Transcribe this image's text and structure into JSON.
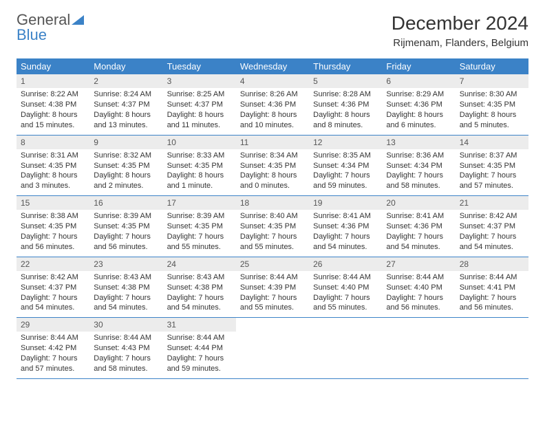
{
  "brand": {
    "part1": "General",
    "part2": "Blue"
  },
  "title": "December 2024",
  "location": "Rijmenam, Flanders, Belgium",
  "colors": {
    "accent": "#3b82c7",
    "daynum_bg": "#ececec",
    "text": "#333333",
    "background": "#ffffff"
  },
  "dayHeaders": [
    "Sunday",
    "Monday",
    "Tuesday",
    "Wednesday",
    "Thursday",
    "Friday",
    "Saturday"
  ],
  "weeks": [
    [
      {
        "n": "1",
        "sr": "Sunrise: 8:22 AM",
        "ss": "Sunset: 4:38 PM",
        "dl1": "Daylight: 8 hours",
        "dl2": "and 15 minutes."
      },
      {
        "n": "2",
        "sr": "Sunrise: 8:24 AM",
        "ss": "Sunset: 4:37 PM",
        "dl1": "Daylight: 8 hours",
        "dl2": "and 13 minutes."
      },
      {
        "n": "3",
        "sr": "Sunrise: 8:25 AM",
        "ss": "Sunset: 4:37 PM",
        "dl1": "Daylight: 8 hours",
        "dl2": "and 11 minutes."
      },
      {
        "n": "4",
        "sr": "Sunrise: 8:26 AM",
        "ss": "Sunset: 4:36 PM",
        "dl1": "Daylight: 8 hours",
        "dl2": "and 10 minutes."
      },
      {
        "n": "5",
        "sr": "Sunrise: 8:28 AM",
        "ss": "Sunset: 4:36 PM",
        "dl1": "Daylight: 8 hours",
        "dl2": "and 8 minutes."
      },
      {
        "n": "6",
        "sr": "Sunrise: 8:29 AM",
        "ss": "Sunset: 4:36 PM",
        "dl1": "Daylight: 8 hours",
        "dl2": "and 6 minutes."
      },
      {
        "n": "7",
        "sr": "Sunrise: 8:30 AM",
        "ss": "Sunset: 4:35 PM",
        "dl1": "Daylight: 8 hours",
        "dl2": "and 5 minutes."
      }
    ],
    [
      {
        "n": "8",
        "sr": "Sunrise: 8:31 AM",
        "ss": "Sunset: 4:35 PM",
        "dl1": "Daylight: 8 hours",
        "dl2": "and 3 minutes."
      },
      {
        "n": "9",
        "sr": "Sunrise: 8:32 AM",
        "ss": "Sunset: 4:35 PM",
        "dl1": "Daylight: 8 hours",
        "dl2": "and 2 minutes."
      },
      {
        "n": "10",
        "sr": "Sunrise: 8:33 AM",
        "ss": "Sunset: 4:35 PM",
        "dl1": "Daylight: 8 hours",
        "dl2": "and 1 minute."
      },
      {
        "n": "11",
        "sr": "Sunrise: 8:34 AM",
        "ss": "Sunset: 4:35 PM",
        "dl1": "Daylight: 8 hours",
        "dl2": "and 0 minutes."
      },
      {
        "n": "12",
        "sr": "Sunrise: 8:35 AM",
        "ss": "Sunset: 4:34 PM",
        "dl1": "Daylight: 7 hours",
        "dl2": "and 59 minutes."
      },
      {
        "n": "13",
        "sr": "Sunrise: 8:36 AM",
        "ss": "Sunset: 4:34 PM",
        "dl1": "Daylight: 7 hours",
        "dl2": "and 58 minutes."
      },
      {
        "n": "14",
        "sr": "Sunrise: 8:37 AM",
        "ss": "Sunset: 4:35 PM",
        "dl1": "Daylight: 7 hours",
        "dl2": "and 57 minutes."
      }
    ],
    [
      {
        "n": "15",
        "sr": "Sunrise: 8:38 AM",
        "ss": "Sunset: 4:35 PM",
        "dl1": "Daylight: 7 hours",
        "dl2": "and 56 minutes."
      },
      {
        "n": "16",
        "sr": "Sunrise: 8:39 AM",
        "ss": "Sunset: 4:35 PM",
        "dl1": "Daylight: 7 hours",
        "dl2": "and 56 minutes."
      },
      {
        "n": "17",
        "sr": "Sunrise: 8:39 AM",
        "ss": "Sunset: 4:35 PM",
        "dl1": "Daylight: 7 hours",
        "dl2": "and 55 minutes."
      },
      {
        "n": "18",
        "sr": "Sunrise: 8:40 AM",
        "ss": "Sunset: 4:35 PM",
        "dl1": "Daylight: 7 hours",
        "dl2": "and 55 minutes."
      },
      {
        "n": "19",
        "sr": "Sunrise: 8:41 AM",
        "ss": "Sunset: 4:36 PM",
        "dl1": "Daylight: 7 hours",
        "dl2": "and 54 minutes."
      },
      {
        "n": "20",
        "sr": "Sunrise: 8:41 AM",
        "ss": "Sunset: 4:36 PM",
        "dl1": "Daylight: 7 hours",
        "dl2": "and 54 minutes."
      },
      {
        "n": "21",
        "sr": "Sunrise: 8:42 AM",
        "ss": "Sunset: 4:37 PM",
        "dl1": "Daylight: 7 hours",
        "dl2": "and 54 minutes."
      }
    ],
    [
      {
        "n": "22",
        "sr": "Sunrise: 8:42 AM",
        "ss": "Sunset: 4:37 PM",
        "dl1": "Daylight: 7 hours",
        "dl2": "and 54 minutes."
      },
      {
        "n": "23",
        "sr": "Sunrise: 8:43 AM",
        "ss": "Sunset: 4:38 PM",
        "dl1": "Daylight: 7 hours",
        "dl2": "and 54 minutes."
      },
      {
        "n": "24",
        "sr": "Sunrise: 8:43 AM",
        "ss": "Sunset: 4:38 PM",
        "dl1": "Daylight: 7 hours",
        "dl2": "and 54 minutes."
      },
      {
        "n": "25",
        "sr": "Sunrise: 8:44 AM",
        "ss": "Sunset: 4:39 PM",
        "dl1": "Daylight: 7 hours",
        "dl2": "and 55 minutes."
      },
      {
        "n": "26",
        "sr": "Sunrise: 8:44 AM",
        "ss": "Sunset: 4:40 PM",
        "dl1": "Daylight: 7 hours",
        "dl2": "and 55 minutes."
      },
      {
        "n": "27",
        "sr": "Sunrise: 8:44 AM",
        "ss": "Sunset: 4:40 PM",
        "dl1": "Daylight: 7 hours",
        "dl2": "and 56 minutes."
      },
      {
        "n": "28",
        "sr": "Sunrise: 8:44 AM",
        "ss": "Sunset: 4:41 PM",
        "dl1": "Daylight: 7 hours",
        "dl2": "and 56 minutes."
      }
    ],
    [
      {
        "n": "29",
        "sr": "Sunrise: 8:44 AM",
        "ss": "Sunset: 4:42 PM",
        "dl1": "Daylight: 7 hours",
        "dl2": "and 57 minutes."
      },
      {
        "n": "30",
        "sr": "Sunrise: 8:44 AM",
        "ss": "Sunset: 4:43 PM",
        "dl1": "Daylight: 7 hours",
        "dl2": "and 58 minutes."
      },
      {
        "n": "31",
        "sr": "Sunrise: 8:44 AM",
        "ss": "Sunset: 4:44 PM",
        "dl1": "Daylight: 7 hours",
        "dl2": "and 59 minutes."
      },
      null,
      null,
      null,
      null
    ]
  ]
}
